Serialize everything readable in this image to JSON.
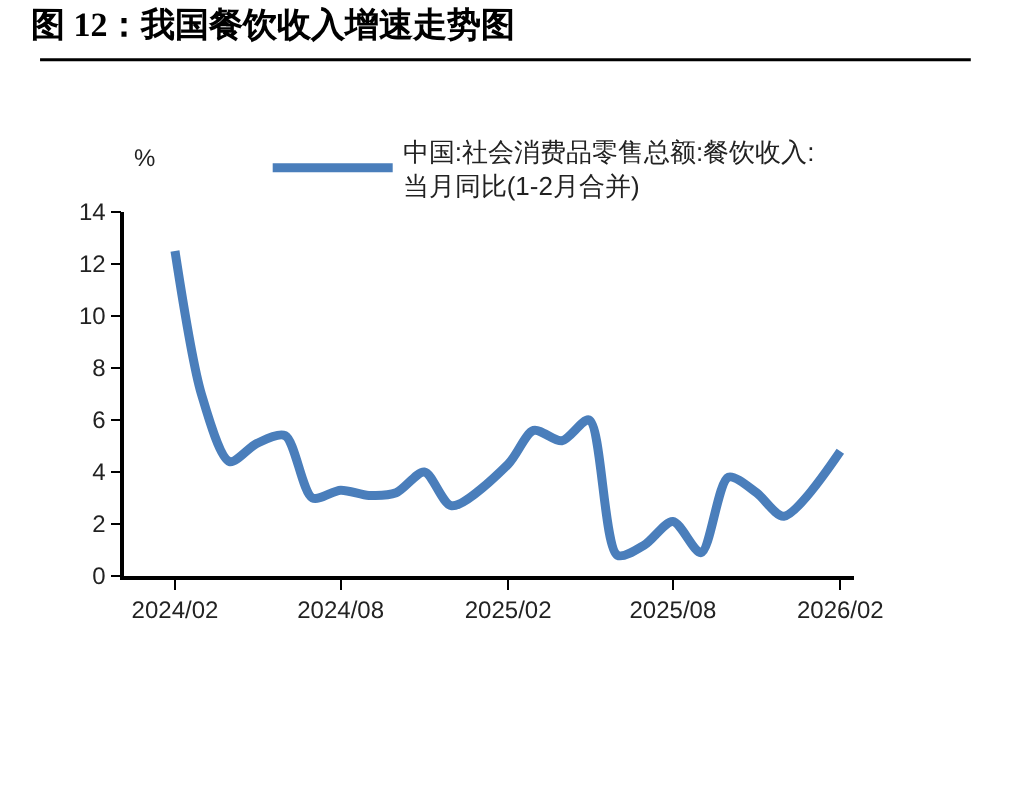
{
  "chart_data": {
    "type": "line",
    "title": "图 12：我国餐饮收入增速走势图",
    "ylabel": "%",
    "x": [
      "2024-02",
      "2024-03",
      "2024-04",
      "2024-05",
      "2024-06",
      "2024-07",
      "2024-08",
      "2024-09",
      "2024-10",
      "2024-11",
      "2024-12",
      "2025-02",
      "2025-03",
      "2025-04",
      "2025-05",
      "2025-06",
      "2025-07",
      "2025-08",
      "2025-09",
      "2025-10",
      "2025-11",
      "2025-12",
      "2026-02"
    ],
    "series": [
      {
        "name": "中国:社会消费品零售总额:餐饮收入:当月同比(1-2月合并)",
        "color": "#4a7ebb",
        "values": [
          12.5,
          7.0,
          4.4,
          5.1,
          5.4,
          3.0,
          3.3,
          3.1,
          3.2,
          4.0,
          2.7,
          4.3,
          5.6,
          5.2,
          6.0,
          0.8,
          1.2,
          2.1,
          0.9,
          3.8,
          3.2,
          2.3,
          4.8
        ]
      }
    ],
    "xlim": [
      "2023-12-07",
      "2026-02-16"
    ],
    "xticks": [
      {
        "value": "2024-02",
        "label": "2024/02"
      },
      {
        "value": "2024-08",
        "label": "2024/08"
      },
      {
        "value": "2025-02",
        "label": "2025/02"
      },
      {
        "value": "2025-08",
        "label": "2025/08"
      },
      {
        "value": "2026-02",
        "label": "2026/02"
      }
    ],
    "ylim": [
      0,
      14
    ],
    "yticks": [
      0,
      2,
      4,
      6,
      8,
      10,
      12,
      14
    ],
    "legend": "top",
    "marker": "none",
    "line_style": "solid"
  }
}
